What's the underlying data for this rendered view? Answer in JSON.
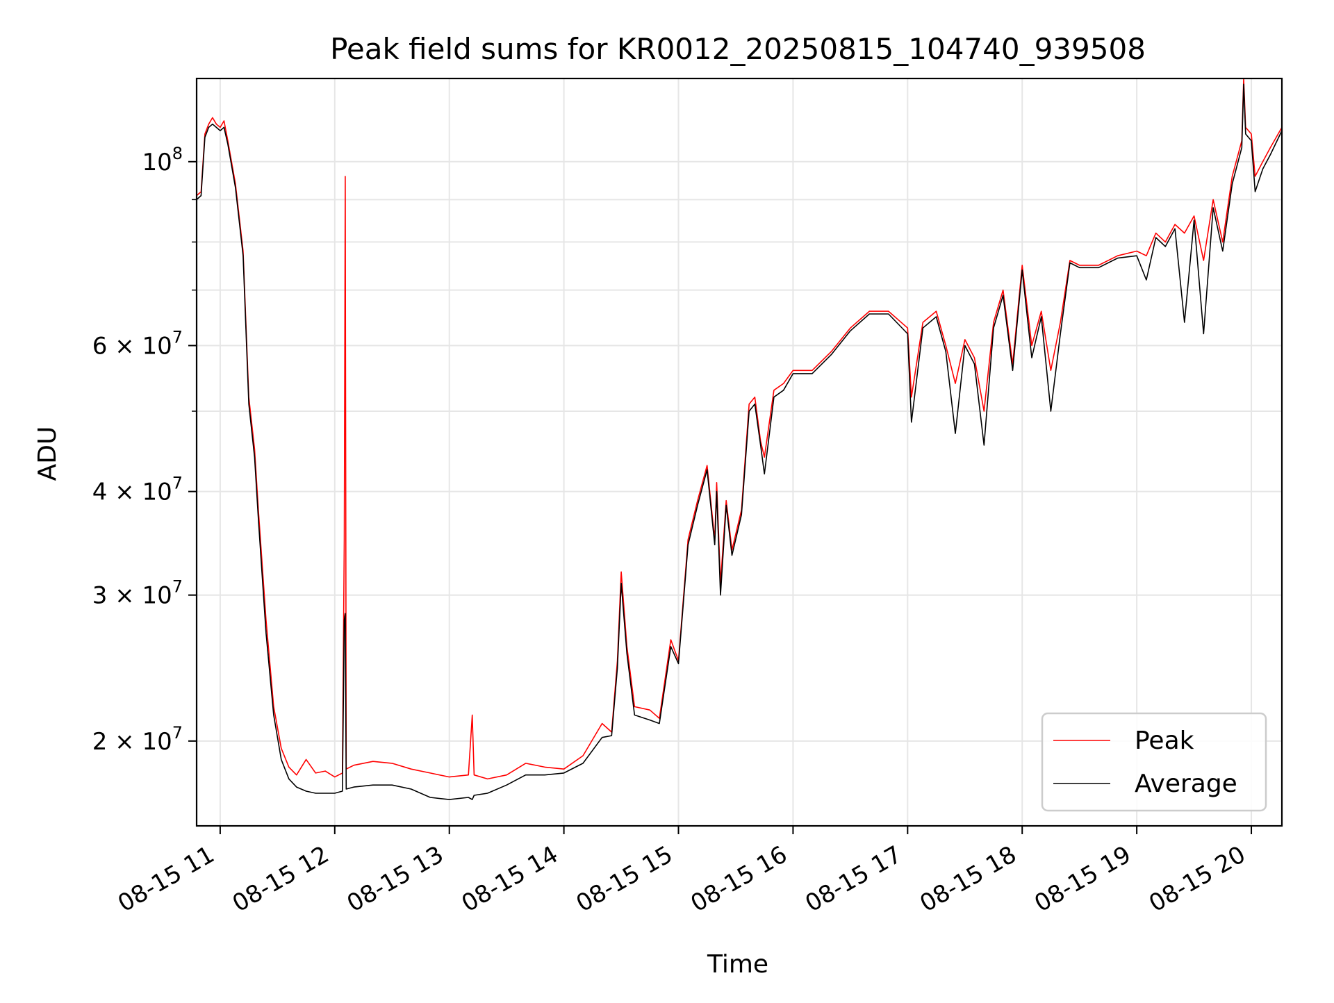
{
  "chart_data": {
    "type": "line",
    "title": "Peak field sums for KR0012_20250815_104740_939508",
    "xlabel": "Time",
    "ylabel": "ADU",
    "yscale": "log",
    "grid": true,
    "legend_position": "lower-right",
    "xlim": [
      "2025-08-15T10:47:40",
      "2025-08-15T20:16:00"
    ],
    "ylim": [
      15800000,
      126000000
    ],
    "x_ticks": [
      {
        "value": "2025-08-15T11:00",
        "label": "08-15 11"
      },
      {
        "value": "2025-08-15T12:00",
        "label": "08-15 12"
      },
      {
        "value": "2025-08-15T13:00",
        "label": "08-15 13"
      },
      {
        "value": "2025-08-15T14:00",
        "label": "08-15 14"
      },
      {
        "value": "2025-08-15T15:00",
        "label": "08-15 15"
      },
      {
        "value": "2025-08-15T16:00",
        "label": "08-15 16"
      },
      {
        "value": "2025-08-15T17:00",
        "label": "08-15 17"
      },
      {
        "value": "2025-08-15T18:00",
        "label": "08-15 18"
      },
      {
        "value": "2025-08-15T19:00",
        "label": "08-15 19"
      },
      {
        "value": "2025-08-15T20:00",
        "label": "08-15 20"
      }
    ],
    "y_ticks": [
      {
        "value": 20000000,
        "mantissa": "2",
        "exponent": "7"
      },
      {
        "value": 30000000,
        "mantissa": "3",
        "exponent": "7"
      },
      {
        "value": 40000000,
        "mantissa": "4",
        "exponent": "7"
      },
      {
        "value": 60000000,
        "mantissa": "6",
        "exponent": "7"
      },
      {
        "value": 100000000,
        "mantissa": "",
        "exponent": "8"
      }
    ],
    "y_minor_ticks": [
      50000000,
      70000000,
      80000000,
      90000000
    ],
    "series": [
      {
        "name": "Peak",
        "color": "#ff0000",
        "points": [
          [
            "2025-08-15T10:47:40",
            91000000
          ],
          [
            "2025-08-15T10:50",
            92000000
          ],
          [
            "2025-08-15T10:52",
            108000000
          ],
          [
            "2025-08-15T10:54",
            111000000
          ],
          [
            "2025-08-15T10:56",
            113000000
          ],
          [
            "2025-08-15T10:58",
            111000000
          ],
          [
            "2025-08-15T11:00",
            110000000
          ],
          [
            "2025-08-15T11:02",
            112000000
          ],
          [
            "2025-08-15T11:04",
            106000000
          ],
          [
            "2025-08-15T11:08",
            94000000
          ],
          [
            "2025-08-15T11:12",
            78000000
          ],
          [
            "2025-08-15T11:15",
            52000000
          ],
          [
            "2025-08-15T11:18",
            45000000
          ],
          [
            "2025-08-15T11:20",
            38000000
          ],
          [
            "2025-08-15T11:24",
            28000000
          ],
          [
            "2025-08-15T11:28",
            22000000
          ],
          [
            "2025-08-15T11:32",
            19600000
          ],
          [
            "2025-08-15T11:36",
            18600000
          ],
          [
            "2025-08-15T11:40",
            18200000
          ],
          [
            "2025-08-15T11:45",
            19000000
          ],
          [
            "2025-08-15T11:50",
            18300000
          ],
          [
            "2025-08-15T11:55",
            18400000
          ],
          [
            "2025-08-15T12:00",
            18100000
          ],
          [
            "2025-08-15T12:04",
            18300000
          ],
          [
            "2025-08-15T12:05",
            35000000
          ],
          [
            "2025-08-15T12:05:30",
            96000000
          ],
          [
            "2025-08-15T12:06",
            18500000
          ],
          [
            "2025-08-15T12:10",
            18700000
          ],
          [
            "2025-08-15T12:20",
            18900000
          ],
          [
            "2025-08-15T12:30",
            18800000
          ],
          [
            "2025-08-15T12:40",
            18500000
          ],
          [
            "2025-08-15T12:50",
            18300000
          ],
          [
            "2025-08-15T13:00",
            18100000
          ],
          [
            "2025-08-15T13:10",
            18200000
          ],
          [
            "2025-08-15T13:12",
            21500000
          ],
          [
            "2025-08-15T13:13",
            18200000
          ],
          [
            "2025-08-15T13:20",
            18000000
          ],
          [
            "2025-08-15T13:30",
            18200000
          ],
          [
            "2025-08-15T13:40",
            18800000
          ],
          [
            "2025-08-15T13:50",
            18600000
          ],
          [
            "2025-08-15T14:00",
            18500000
          ],
          [
            "2025-08-15T14:10",
            19200000
          ],
          [
            "2025-08-15T14:20",
            21000000
          ],
          [
            "2025-08-15T14:25",
            20500000
          ],
          [
            "2025-08-15T14:28",
            25000000
          ],
          [
            "2025-08-15T14:30",
            32000000
          ],
          [
            "2025-08-15T14:33",
            26000000
          ],
          [
            "2025-08-15T14:37",
            22000000
          ],
          [
            "2025-08-15T14:45",
            21800000
          ],
          [
            "2025-08-15T14:50",
            21300000
          ],
          [
            "2025-08-15T14:56",
            26500000
          ],
          [
            "2025-08-15T15:00",
            25000000
          ],
          [
            "2025-08-15T15:05",
            35000000
          ],
          [
            "2025-08-15T15:10",
            39000000
          ],
          [
            "2025-08-15T15:15",
            43000000
          ],
          [
            "2025-08-15T15:19",
            35000000
          ],
          [
            "2025-08-15T15:20",
            41000000
          ],
          [
            "2025-08-15T15:22",
            31000000
          ],
          [
            "2025-08-15T15:25",
            39000000
          ],
          [
            "2025-08-15T15:28",
            34000000
          ],
          [
            "2025-08-15T15:33",
            38000000
          ],
          [
            "2025-08-15T15:37",
            51000000
          ],
          [
            "2025-08-15T15:40",
            52000000
          ],
          [
            "2025-08-15T15:43",
            46000000
          ],
          [
            "2025-08-15T15:45",
            44000000
          ],
          [
            "2025-08-15T15:50",
            53000000
          ],
          [
            "2025-08-15T15:55",
            54000000
          ],
          [
            "2025-08-15T16:00",
            56000000
          ],
          [
            "2025-08-15T16:10",
            56000000
          ],
          [
            "2025-08-15T16:20",
            59000000
          ],
          [
            "2025-08-15T16:30",
            63000000
          ],
          [
            "2025-08-15T16:40",
            66000000
          ],
          [
            "2025-08-15T16:50",
            66000000
          ],
          [
            "2025-08-15T17:00",
            63000000
          ],
          [
            "2025-08-15T17:02",
            52000000
          ],
          [
            "2025-08-15T17:08",
            64000000
          ],
          [
            "2025-08-15T17:15",
            66000000
          ],
          [
            "2025-08-15T17:20",
            60000000
          ],
          [
            "2025-08-15T17:25",
            54000000
          ],
          [
            "2025-08-15T17:30",
            61000000
          ],
          [
            "2025-08-15T17:35",
            58000000
          ],
          [
            "2025-08-15T17:40",
            50000000
          ],
          [
            "2025-08-15T17:45",
            64000000
          ],
          [
            "2025-08-15T17:50",
            70000000
          ],
          [
            "2025-08-15T17:55",
            57000000
          ],
          [
            "2025-08-15T18:00",
            75000000
          ],
          [
            "2025-08-15T18:05",
            60000000
          ],
          [
            "2025-08-15T18:10",
            66000000
          ],
          [
            "2025-08-15T18:15",
            56000000
          ],
          [
            "2025-08-15T18:20",
            64000000
          ],
          [
            "2025-08-15T18:25",
            76000000
          ],
          [
            "2025-08-15T18:30",
            75000000
          ],
          [
            "2025-08-15T18:40",
            75000000
          ],
          [
            "2025-08-15T18:50",
            77000000
          ],
          [
            "2025-08-15T19:00",
            78000000
          ],
          [
            "2025-08-15T19:05",
            77000000
          ],
          [
            "2025-08-15T19:10",
            82000000
          ],
          [
            "2025-08-15T19:15",
            80000000
          ],
          [
            "2025-08-15T19:20",
            84000000
          ],
          [
            "2025-08-15T19:25",
            82000000
          ],
          [
            "2025-08-15T19:30",
            86000000
          ],
          [
            "2025-08-15T19:35",
            76000000
          ],
          [
            "2025-08-15T19:40",
            90000000
          ],
          [
            "2025-08-15T19:45",
            80000000
          ],
          [
            "2025-08-15T19:50",
            96000000
          ],
          [
            "2025-08-15T19:55",
            106000000
          ],
          [
            "2025-08-15T19:56",
            126000000
          ],
          [
            "2025-08-15T19:57",
            110000000
          ],
          [
            "2025-08-15T20:00",
            108000000
          ],
          [
            "2025-08-15T20:02",
            96000000
          ],
          [
            "2025-08-15T20:06",
            100000000
          ],
          [
            "2025-08-15T20:10",
            104000000
          ],
          [
            "2025-08-15T20:16",
            110000000
          ]
        ]
      },
      {
        "name": "Average",
        "color": "#000000",
        "points": [
          [
            "2025-08-15T10:47:40",
            90000000
          ],
          [
            "2025-08-15T10:50",
            91000000
          ],
          [
            "2025-08-15T10:52",
            107000000
          ],
          [
            "2025-08-15T10:54",
            110000000
          ],
          [
            "2025-08-15T10:56",
            111000000
          ],
          [
            "2025-08-15T10:58",
            110000000
          ],
          [
            "2025-08-15T11:00",
            109000000
          ],
          [
            "2025-08-15T11:02",
            110000000
          ],
          [
            "2025-08-15T11:04",
            105000000
          ],
          [
            "2025-08-15T11:08",
            93000000
          ],
          [
            "2025-08-15T11:12",
            77000000
          ],
          [
            "2025-08-15T11:15",
            51000000
          ],
          [
            "2025-08-15T11:18",
            44000000
          ],
          [
            "2025-08-15T11:20",
            37000000
          ],
          [
            "2025-08-15T11:24",
            27000000
          ],
          [
            "2025-08-15T11:28",
            21500000
          ],
          [
            "2025-08-15T11:32",
            19000000
          ],
          [
            "2025-08-15T11:36",
            18000000
          ],
          [
            "2025-08-15T11:40",
            17600000
          ],
          [
            "2025-08-15T11:45",
            17400000
          ],
          [
            "2025-08-15T11:50",
            17300000
          ],
          [
            "2025-08-15T11:55",
            17300000
          ],
          [
            "2025-08-15T12:00",
            17300000
          ],
          [
            "2025-08-15T12:04",
            17400000
          ],
          [
            "2025-08-15T12:05",
            28000000
          ],
          [
            "2025-08-15T12:05:30",
            28500000
          ],
          [
            "2025-08-15T12:06",
            17500000
          ],
          [
            "2025-08-15T12:10",
            17600000
          ],
          [
            "2025-08-15T12:20",
            17700000
          ],
          [
            "2025-08-15T12:30",
            17700000
          ],
          [
            "2025-08-15T12:40",
            17500000
          ],
          [
            "2025-08-15T12:50",
            17100000
          ],
          [
            "2025-08-15T13:00",
            17000000
          ],
          [
            "2025-08-15T13:10",
            17100000
          ],
          [
            "2025-08-15T13:12",
            17000000
          ],
          [
            "2025-08-15T13:13",
            17200000
          ],
          [
            "2025-08-15T13:20",
            17300000
          ],
          [
            "2025-08-15T13:30",
            17700000
          ],
          [
            "2025-08-15T13:40",
            18200000
          ],
          [
            "2025-08-15T13:50",
            18200000
          ],
          [
            "2025-08-15T14:00",
            18300000
          ],
          [
            "2025-08-15T14:10",
            18800000
          ],
          [
            "2025-08-15T14:20",
            20200000
          ],
          [
            "2025-08-15T14:25",
            20300000
          ],
          [
            "2025-08-15T14:28",
            24500000
          ],
          [
            "2025-08-15T14:30",
            31000000
          ],
          [
            "2025-08-15T14:33",
            25500000
          ],
          [
            "2025-08-15T14:37",
            21500000
          ],
          [
            "2025-08-15T14:45",
            21200000
          ],
          [
            "2025-08-15T14:50",
            21000000
          ],
          [
            "2025-08-15T14:56",
            26000000
          ],
          [
            "2025-08-15T15:00",
            24800000
          ],
          [
            "2025-08-15T15:05",
            34500000
          ],
          [
            "2025-08-15T15:10",
            38500000
          ],
          [
            "2025-08-15T15:15",
            42500000
          ],
          [
            "2025-08-15T15:19",
            34500000
          ],
          [
            "2025-08-15T15:20",
            40000000
          ],
          [
            "2025-08-15T15:22",
            30000000
          ],
          [
            "2025-08-15T15:25",
            38500000
          ],
          [
            "2025-08-15T15:28",
            33500000
          ],
          [
            "2025-08-15T15:33",
            37500000
          ],
          [
            "2025-08-15T15:37",
            50000000
          ],
          [
            "2025-08-15T15:40",
            51000000
          ],
          [
            "2025-08-15T15:43",
            45500000
          ],
          [
            "2025-08-15T15:45",
            42000000
          ],
          [
            "2025-08-15T15:50",
            52000000
          ],
          [
            "2025-08-15T15:55",
            53000000
          ],
          [
            "2025-08-15T16:00",
            55500000
          ],
          [
            "2025-08-15T16:10",
            55500000
          ],
          [
            "2025-08-15T16:20",
            58500000
          ],
          [
            "2025-08-15T16:30",
            62500000
          ],
          [
            "2025-08-15T16:40",
            65500000
          ],
          [
            "2025-08-15T16:50",
            65500000
          ],
          [
            "2025-08-15T17:00",
            62000000
          ],
          [
            "2025-08-15T17:02",
            48500000
          ],
          [
            "2025-08-15T17:08",
            63000000
          ],
          [
            "2025-08-15T17:15",
            65000000
          ],
          [
            "2025-08-15T17:20",
            59000000
          ],
          [
            "2025-08-15T17:25",
            47000000
          ],
          [
            "2025-08-15T17:30",
            60000000
          ],
          [
            "2025-08-15T17:35",
            57000000
          ],
          [
            "2025-08-15T17:40",
            45500000
          ],
          [
            "2025-08-15T17:45",
            63000000
          ],
          [
            "2025-08-15T17:50",
            69000000
          ],
          [
            "2025-08-15T17:55",
            56000000
          ],
          [
            "2025-08-15T18:00",
            74000000
          ],
          [
            "2025-08-15T18:05",
            58000000
          ],
          [
            "2025-08-15T18:10",
            65000000
          ],
          [
            "2025-08-15T18:15",
            50000000
          ],
          [
            "2025-08-15T18:20",
            62000000
          ],
          [
            "2025-08-15T18:25",
            75500000
          ],
          [
            "2025-08-15T18:30",
            74500000
          ],
          [
            "2025-08-15T18:40",
            74500000
          ],
          [
            "2025-08-15T18:50",
            76500000
          ],
          [
            "2025-08-15T19:00",
            77000000
          ],
          [
            "2025-08-15T19:05",
            72000000
          ],
          [
            "2025-08-15T19:10",
            81000000
          ],
          [
            "2025-08-15T19:15",
            79000000
          ],
          [
            "2025-08-15T19:20",
            83000000
          ],
          [
            "2025-08-15T19:25",
            64000000
          ],
          [
            "2025-08-15T19:30",
            85000000
          ],
          [
            "2025-08-15T19:35",
            62000000
          ],
          [
            "2025-08-15T19:40",
            88000000
          ],
          [
            "2025-08-15T19:45",
            78000000
          ],
          [
            "2025-08-15T19:50",
            94000000
          ],
          [
            "2025-08-15T19:55",
            104000000
          ],
          [
            "2025-08-15T19:56",
            124000000
          ],
          [
            "2025-08-15T19:57",
            108000000
          ],
          [
            "2025-08-15T20:00",
            106000000
          ],
          [
            "2025-08-15T20:02",
            92000000
          ],
          [
            "2025-08-15T20:06",
            98000000
          ],
          [
            "2025-08-15T20:10",
            102000000
          ],
          [
            "2025-08-15T20:16",
            109000000
          ]
        ]
      }
    ]
  }
}
